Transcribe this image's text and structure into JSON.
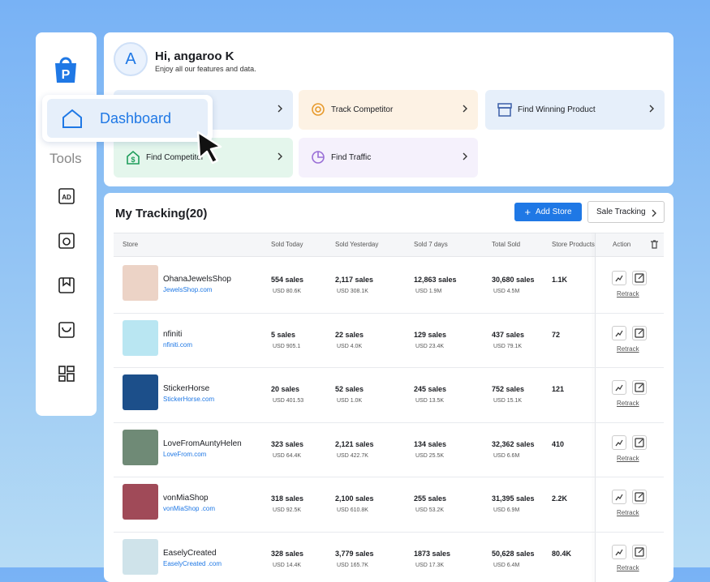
{
  "greeting": {
    "avatar": "A",
    "title": "Hi, angaroo K",
    "subtitle": "Enjoy all our features and data."
  },
  "sidebar": {
    "popup": "Dashboard",
    "section": "Tools"
  },
  "quick_links": [
    "Track Competitor",
    "Find Winning Product",
    "Find Competitor",
    "Find Traffic"
  ],
  "tracking": {
    "title": "My Tracking(20)",
    "add_button": "Add Store",
    "sale_button": "Sale Tracking",
    "headers": [
      "Store",
      "Sold Today",
      "Sold Yesterday",
      "Sold 7 days",
      "Total Sold",
      "Store Products",
      "Action"
    ],
    "rows": [
      {
        "store": "OhanaJewelsShop",
        "link": "JewelsShop.com",
        "cells": [
          [
            "554 sales",
            "USD 80.6K"
          ],
          [
            "2,117 sales",
            "USD 308.1K"
          ],
          [
            "12,863 sales",
            "USD 1.9M"
          ],
          [
            "30,680 sales",
            "USD 4.5M"
          ]
        ],
        "products": "1.1K",
        "action": "Retrack"
      },
      {
        "store": "nfiniti",
        "link": "nfiniti.com",
        "cells": [
          [
            "5 sales",
            "USD 905.1"
          ],
          [
            "22 sales",
            "USD 4.0K"
          ],
          [
            "129 sales",
            "USD 23.4K"
          ],
          [
            "437 sales",
            "USD 79.1K"
          ]
        ],
        "products": "72",
        "action": "Retrack"
      },
      {
        "store": "StickerHorse",
        "link": "StickerHorse.com",
        "cells": [
          [
            "20 sales",
            "USD 401.53"
          ],
          [
            "52 sales",
            "USD 1.0K"
          ],
          [
            "245 sales",
            "USD 13.5K"
          ],
          [
            "752 sales",
            "USD 15.1K"
          ]
        ],
        "products": "121",
        "action": "Retrack"
      },
      {
        "store": "LoveFromAuntyHelen",
        "link": "LoveFrom.com",
        "cells": [
          [
            "323 sales",
            "USD 64.4K"
          ],
          [
            "2,121 sales",
            "USD 422.7K"
          ],
          [
            "134 sales",
            "USD 25.5K"
          ],
          [
            "32,362 sales",
            "USD 6.6M"
          ]
        ],
        "products": "410",
        "action": "Retrack"
      },
      {
        "store": "vonMiaShop",
        "link": "vonMiaShop .com",
        "cells": [
          [
            "318 sales",
            "USD 92.5K"
          ],
          [
            "2,100 sales",
            "USD 610.8K"
          ],
          [
            "255 sales",
            "USD 53.2K"
          ],
          [
            "31,395 sales",
            "USD 6.9M"
          ]
        ],
        "products": "2.2K",
        "action": "Retrack"
      },
      {
        "store": "EaselyCreated",
        "link": "EaselyCreated .com",
        "cells": [
          [
            "328 sales",
            "USD 14.4K"
          ],
          [
            "3,779 sales",
            "USD 165.7K"
          ],
          [
            "1873 sales",
            "USD 17.3K"
          ],
          [
            "50,628 sales",
            "USD 6.4M"
          ]
        ],
        "products": "80.4K",
        "action": "Retrack"
      }
    ]
  }
}
